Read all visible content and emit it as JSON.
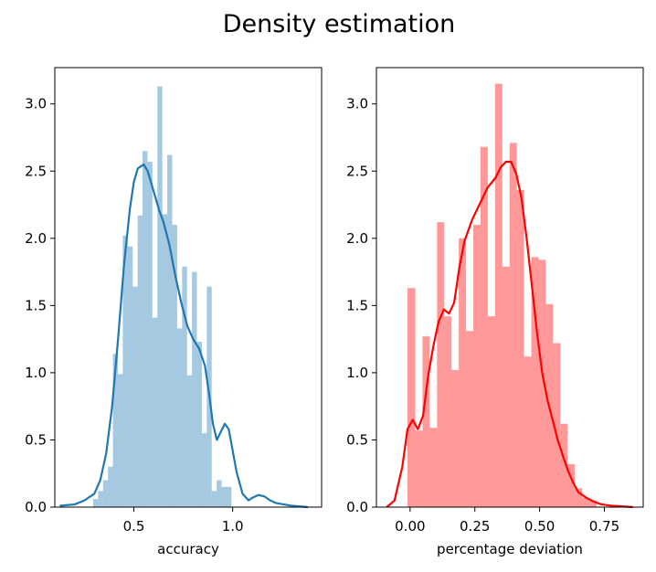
{
  "figure": {
    "title": "Density estimation"
  },
  "chart_data": [
    {
      "type": "histogram+kde",
      "title": "",
      "xlabel": "accuracy",
      "ylabel": "",
      "xlim": [
        0.1,
        1.45
      ],
      "ylim": [
        0,
        3.27
      ],
      "xticks": [
        0.5,
        1.0
      ],
      "xtick_labels": [
        "0.5",
        "1.0"
      ],
      "yticks": [
        0,
        0.5,
        1.0,
        1.5,
        2.0,
        2.5,
        3.0
      ],
      "ytick_labels": [
        "0.0",
        "0.5",
        "1.0",
        "1.5",
        "2.0",
        "2.5",
        "3.0"
      ],
      "grid": false,
      "colors": {
        "bar": "#1f77b4",
        "bar_opacity": 0.4,
        "line": "#1f77b4"
      },
      "histogram": {
        "bins": [
          {
            "x0": 0.294,
            "x1": 0.319,
            "y": 0.06
          },
          {
            "x0": 0.319,
            "x1": 0.344,
            "y": 0.12
          },
          {
            "x0": 0.344,
            "x1": 0.369,
            "y": 0.2
          },
          {
            "x0": 0.369,
            "x1": 0.394,
            "y": 0.3
          },
          {
            "x0": 0.394,
            "x1": 0.419,
            "y": 1.14
          },
          {
            "x0": 0.419,
            "x1": 0.444,
            "y": 0.99
          },
          {
            "x0": 0.444,
            "x1": 0.469,
            "y": 2.02
          },
          {
            "x0": 0.469,
            "x1": 0.494,
            "y": 1.94
          },
          {
            "x0": 0.494,
            "x1": 0.519,
            "y": 1.64
          },
          {
            "x0": 0.519,
            "x1": 0.544,
            "y": 2.17
          },
          {
            "x0": 0.544,
            "x1": 0.569,
            "y": 2.65
          },
          {
            "x0": 0.569,
            "x1": 0.594,
            "y": 2.57
          },
          {
            "x0": 0.594,
            "x1": 0.619,
            "y": 1.41
          },
          {
            "x0": 0.619,
            "x1": 0.644,
            "y": 3.13
          },
          {
            "x0": 0.644,
            "x1": 0.669,
            "y": 2.18
          },
          {
            "x0": 0.669,
            "x1": 0.694,
            "y": 2.62
          },
          {
            "x0": 0.694,
            "x1": 0.719,
            "y": 2.1
          },
          {
            "x0": 0.719,
            "x1": 0.744,
            "y": 1.33
          },
          {
            "x0": 0.744,
            "x1": 0.769,
            "y": 1.79
          },
          {
            "x0": 0.769,
            "x1": 0.794,
            "y": 0.98
          },
          {
            "x0": 0.794,
            "x1": 0.819,
            "y": 1.75
          },
          {
            "x0": 0.819,
            "x1": 0.844,
            "y": 1.23
          },
          {
            "x0": 0.844,
            "x1": 0.869,
            "y": 0.55
          },
          {
            "x0": 0.869,
            "x1": 0.894,
            "y": 1.64
          },
          {
            "x0": 0.894,
            "x1": 0.919,
            "y": 0.12
          },
          {
            "x0": 0.919,
            "x1": 0.944,
            "y": 0.2
          },
          {
            "x0": 0.944,
            "x1": 0.969,
            "y": 0.15
          },
          {
            "x0": 0.969,
            "x1": 0.994,
            "y": 0.15
          }
        ]
      },
      "kde": {
        "x": [
          0.125,
          0.2,
          0.25,
          0.3,
          0.33,
          0.36,
          0.39,
          0.42,
          0.45,
          0.48,
          0.5,
          0.52,
          0.55,
          0.57,
          0.59,
          0.61,
          0.63,
          0.65,
          0.68,
          0.71,
          0.74,
          0.77,
          0.8,
          0.83,
          0.86,
          0.88,
          0.9,
          0.92,
          0.94,
          0.96,
          0.98,
          1.0,
          1.02,
          1.05,
          1.08,
          1.1,
          1.13,
          1.16,
          1.19,
          1.22,
          1.26,
          1.3,
          1.34,
          1.38
        ],
        "y": [
          0.01,
          0.02,
          0.05,
          0.1,
          0.2,
          0.4,
          0.75,
          1.25,
          1.8,
          2.22,
          2.42,
          2.52,
          2.55,
          2.5,
          2.4,
          2.3,
          2.2,
          2.12,
          1.95,
          1.72,
          1.52,
          1.35,
          1.25,
          1.18,
          1.05,
          0.85,
          0.62,
          0.5,
          0.56,
          0.62,
          0.58,
          0.42,
          0.26,
          0.1,
          0.05,
          0.07,
          0.09,
          0.08,
          0.05,
          0.03,
          0.02,
          0.01,
          0.005,
          0.0
        ]
      }
    },
    {
      "type": "histogram+kde",
      "title": "",
      "xlabel": "percentage deviation",
      "ylabel": "",
      "xlim": [
        -0.13,
        0.9
      ],
      "ylim": [
        0,
        3.27
      ],
      "xticks": [
        0.0,
        0.25,
        0.5,
        0.75
      ],
      "xtick_labels": [
        "0.00",
        "0.25",
        "0.50",
        "0.75"
      ],
      "yticks": [
        0,
        0.5,
        1.0,
        1.5,
        2.0,
        2.5,
        3.0
      ],
      "ytick_labels": [
        "0.0",
        "0.5",
        "1.0",
        "1.5",
        "2.0",
        "2.5",
        "3.0"
      ],
      "grid": false,
      "colors": {
        "bar": "#ff0000",
        "bar_opacity": 0.4,
        "line": "#ff0000"
      },
      "histogram": {
        "bins": [
          {
            "x0": -0.01,
            "x1": 0.02,
            "y": 1.63
          },
          {
            "x0": 0.02,
            "x1": 0.048,
            "y": 0.57
          },
          {
            "x0": 0.048,
            "x1": 0.076,
            "y": 1.27
          },
          {
            "x0": 0.076,
            "x1": 0.104,
            "y": 0.59
          },
          {
            "x0": 0.104,
            "x1": 0.132,
            "y": 2.12
          },
          {
            "x0": 0.132,
            "x1": 0.16,
            "y": 1.42
          },
          {
            "x0": 0.16,
            "x1": 0.188,
            "y": 1.02
          },
          {
            "x0": 0.188,
            "x1": 0.216,
            "y": 2.0
          },
          {
            "x0": 0.216,
            "x1": 0.244,
            "y": 1.31
          },
          {
            "x0": 0.244,
            "x1": 0.272,
            "y": 2.1
          },
          {
            "x0": 0.272,
            "x1": 0.3,
            "y": 2.68
          },
          {
            "x0": 0.3,
            "x1": 0.328,
            "y": 1.42
          },
          {
            "x0": 0.328,
            "x1": 0.356,
            "y": 3.15
          },
          {
            "x0": 0.356,
            "x1": 0.384,
            "y": 1.79
          },
          {
            "x0": 0.384,
            "x1": 0.412,
            "y": 2.71
          },
          {
            "x0": 0.412,
            "x1": 0.44,
            "y": 2.36
          },
          {
            "x0": 0.44,
            "x1": 0.468,
            "y": 1.12
          },
          {
            "x0": 0.468,
            "x1": 0.496,
            "y": 1.86
          },
          {
            "x0": 0.496,
            "x1": 0.524,
            "y": 1.84
          },
          {
            "x0": 0.524,
            "x1": 0.552,
            "y": 1.51
          },
          {
            "x0": 0.552,
            "x1": 0.58,
            "y": 1.22
          },
          {
            "x0": 0.58,
            "x1": 0.608,
            "y": 0.62
          },
          {
            "x0": 0.608,
            "x1": 0.636,
            "y": 0.32
          },
          {
            "x0": 0.636,
            "x1": 0.664,
            "y": 0.14
          },
          {
            "x0": 0.664,
            "x1": 0.692,
            "y": 0.07
          },
          {
            "x0": 0.692,
            "x1": 0.72,
            "y": 0.05
          }
        ]
      },
      "kde": {
        "x": [
          -0.09,
          -0.06,
          -0.03,
          -0.01,
          0.01,
          0.03,
          0.05,
          0.07,
          0.09,
          0.11,
          0.13,
          0.15,
          0.17,
          0.19,
          0.21,
          0.24,
          0.27,
          0.3,
          0.33,
          0.35,
          0.37,
          0.39,
          0.41,
          0.43,
          0.45,
          0.47,
          0.49,
          0.51,
          0.53,
          0.55,
          0.57,
          0.59,
          0.61,
          0.63,
          0.65,
          0.68,
          0.71,
          0.74,
          0.78,
          0.82,
          0.86
        ],
        "y": [
          0.0,
          0.05,
          0.3,
          0.58,
          0.65,
          0.58,
          0.68,
          0.98,
          1.2,
          1.38,
          1.47,
          1.44,
          1.52,
          1.78,
          1.98,
          2.14,
          2.26,
          2.38,
          2.45,
          2.53,
          2.57,
          2.57,
          2.48,
          2.3,
          2.0,
          1.65,
          1.3,
          1.0,
          0.8,
          0.65,
          0.5,
          0.38,
          0.27,
          0.18,
          0.11,
          0.07,
          0.04,
          0.02,
          0.01,
          0.005,
          0.0
        ]
      }
    }
  ]
}
